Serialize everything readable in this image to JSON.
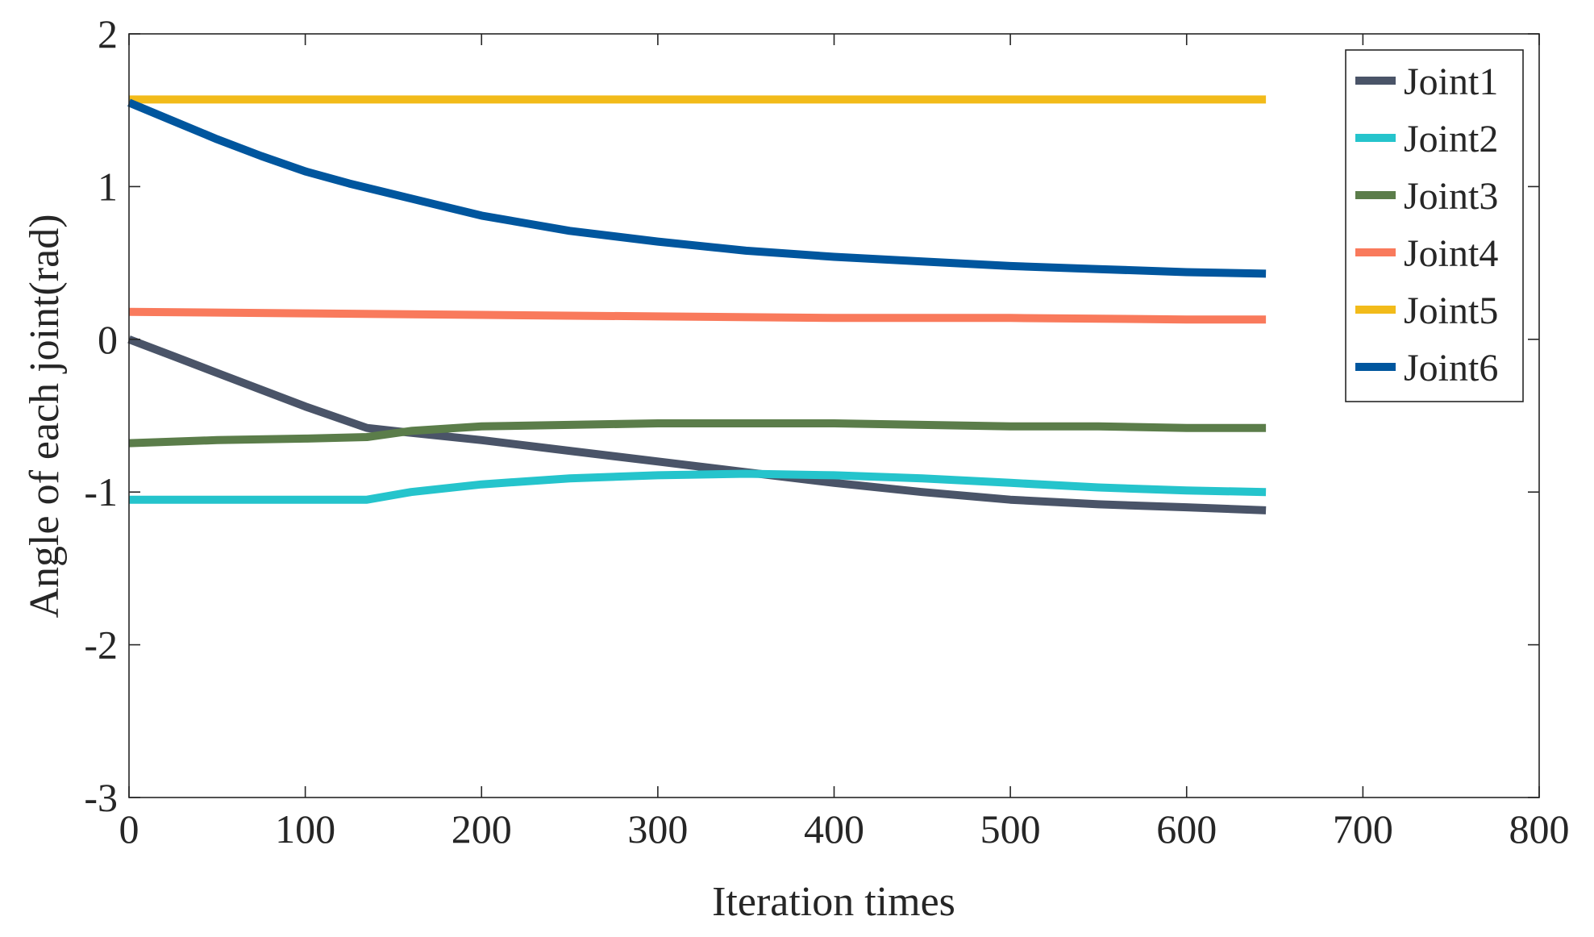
{
  "chart_data": {
    "type": "line",
    "title": "",
    "xlabel": "Iteration times",
    "ylabel": "Angle of each joint(rad)",
    "xlim": [
      0,
      800
    ],
    "ylim": [
      -3,
      2
    ],
    "xticks": [
      0,
      100,
      200,
      300,
      400,
      500,
      600,
      700,
      800
    ],
    "yticks": [
      -3,
      -2,
      -1,
      0,
      1,
      2
    ],
    "xtick_labels": [
      "0",
      "100",
      "200",
      "300",
      "400",
      "500",
      "600",
      "700",
      "800"
    ],
    "ytick_labels": [
      "-3",
      "-2",
      "-1",
      "0",
      "1",
      "2"
    ],
    "grid": false,
    "legend_position": "top-right",
    "series": [
      {
        "name": "Joint1",
        "color": "#4a5468",
        "x": [
          0,
          25,
          50,
          75,
          100,
          135,
          150,
          200,
          250,
          300,
          350,
          400,
          450,
          500,
          550,
          600,
          645
        ],
        "y": [
          0.0,
          -0.11,
          -0.22,
          -0.33,
          -0.44,
          -0.58,
          -0.6,
          -0.66,
          -0.73,
          -0.8,
          -0.87,
          -0.94,
          -1.0,
          -1.05,
          -1.08,
          -1.1,
          -1.12
        ]
      },
      {
        "name": "Joint2",
        "color": "#25c4cc",
        "x": [
          0,
          50,
          100,
          135,
          160,
          200,
          250,
          300,
          350,
          400,
          450,
          500,
          550,
          600,
          645
        ],
        "y": [
          -1.05,
          -1.05,
          -1.05,
          -1.05,
          -1.0,
          -0.95,
          -0.91,
          -0.89,
          -0.88,
          -0.89,
          -0.91,
          -0.94,
          -0.97,
          -0.99,
          -1.0
        ]
      },
      {
        "name": "Joint3",
        "color": "#5b7d4a",
        "x": [
          0,
          50,
          100,
          135,
          160,
          200,
          250,
          300,
          350,
          400,
          450,
          500,
          550,
          600,
          645
        ],
        "y": [
          -0.68,
          -0.66,
          -0.65,
          -0.64,
          -0.6,
          -0.57,
          -0.56,
          -0.55,
          -0.55,
          -0.55,
          -0.56,
          -0.57,
          -0.57,
          -0.58,
          -0.58
        ]
      },
      {
        "name": "Joint4",
        "color": "#f97a5c",
        "x": [
          0,
          100,
          200,
          300,
          400,
          500,
          600,
          645
        ],
        "y": [
          0.18,
          0.17,
          0.16,
          0.15,
          0.14,
          0.14,
          0.13,
          0.13
        ]
      },
      {
        "name": "Joint5",
        "color": "#f2bb1a",
        "x": [
          0,
          645
        ],
        "y": [
          1.57,
          1.57
        ]
      },
      {
        "name": "Joint6",
        "color": "#00569e",
        "x": [
          0,
          25,
          50,
          75,
          100,
          125,
          150,
          200,
          250,
          300,
          350,
          400,
          450,
          500,
          550,
          600,
          645
        ],
        "y": [
          1.55,
          1.43,
          1.31,
          1.2,
          1.1,
          1.02,
          0.95,
          0.81,
          0.71,
          0.64,
          0.58,
          0.54,
          0.51,
          0.48,
          0.46,
          0.44,
          0.43
        ]
      }
    ]
  }
}
